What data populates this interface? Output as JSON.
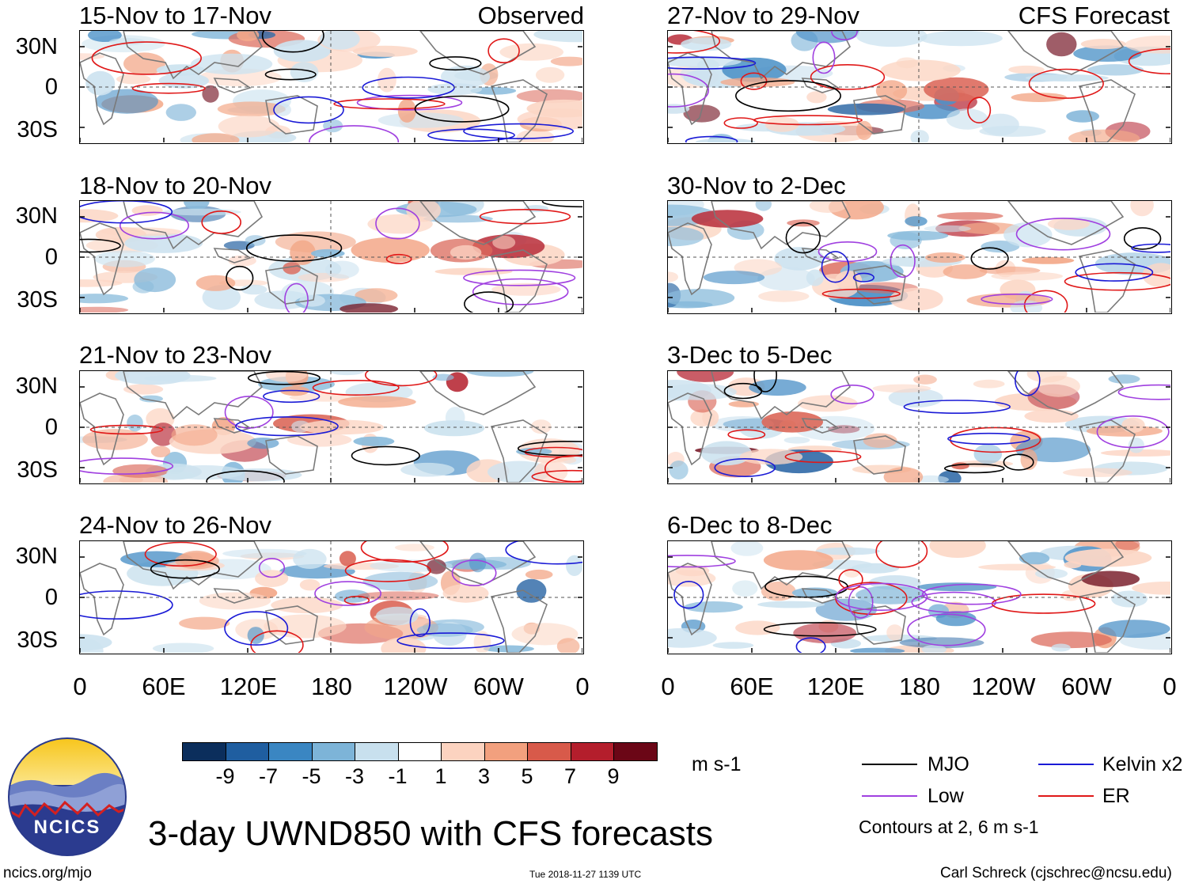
{
  "title": "3-day UWND850 with CFS forecasts",
  "observed_label": "Observed",
  "forecast_label": "CFS Forecast",
  "units": "m s-1",
  "footer_left": "ncics.org/mjo",
  "footer_center": "Tue 2018-11-27 1139 UTC",
  "footer_right": "Carl Schreck (cjschrec@ncsu.edu)",
  "logo_text": "NCICS",
  "lat_labels": [
    "30N",
    "0",
    "30S"
  ],
  "lon_labels": [
    "0",
    "60E",
    "120E",
    "180",
    "120W",
    "60W",
    "0"
  ],
  "panels_observed": [
    {
      "period": "15-Nov to 17-Nov"
    },
    {
      "period": "18-Nov to 20-Nov"
    },
    {
      "period": "21-Nov to 23-Nov"
    },
    {
      "period": "24-Nov to 26-Nov"
    }
  ],
  "panels_forecast": [
    {
      "period": "27-Nov to 29-Nov"
    },
    {
      "period": "30-Nov to 2-Dec"
    },
    {
      "period": "3-Dec to 5-Dec"
    },
    {
      "period": "6-Dec to 8-Dec"
    }
  ],
  "colorbar": {
    "labels": [
      "-9",
      "-7",
      "-5",
      "-3",
      "-1",
      "1",
      "3",
      "5",
      "7",
      "9"
    ],
    "colors": [
      "#0b2e5c",
      "#1f5ea0",
      "#3a86c2",
      "#7db4d8",
      "#c8e0ee",
      "#ffffff",
      "#fcd3c0",
      "#f2a07e",
      "#d85a4a",
      "#b41e2c",
      "#6b0616"
    ]
  },
  "legend": {
    "items": [
      {
        "label": "MJO",
        "color": "#000000"
      },
      {
        "label": "Kelvin x2",
        "color": "#1a1ad6"
      },
      {
        "label": "Low",
        "color": "#a040e0"
      },
      {
        "label": "ER",
        "color": "#e01818"
      }
    ],
    "note": "Contours at 2, 6 m s-1"
  }
}
